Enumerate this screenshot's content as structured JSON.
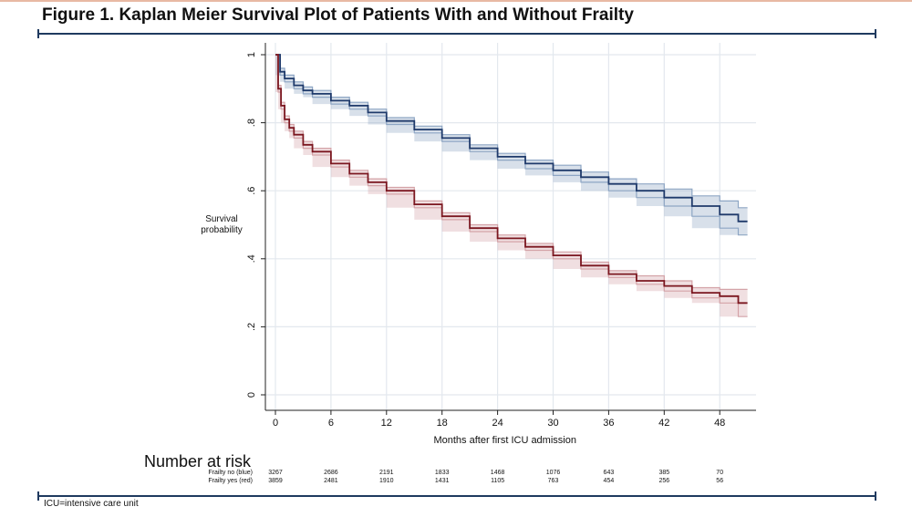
{
  "page": {
    "title": "Figure 1. Kaplan Meier Survival Plot of Patients With and Without Frailty",
    "footnote": "ICU=intensive care unit"
  },
  "risk_table": {
    "heading": "Number at risk",
    "rows": [
      {
        "label": "Frailty no (blue)",
        "values": [
          "3267",
          "2686",
          "2191",
          "1833",
          "1468",
          "1076",
          "643",
          "385",
          "70"
        ]
      },
      {
        "label": "Frailty yes (red)",
        "values": [
          "3859",
          "2481",
          "1910",
          "1431",
          "1105",
          "763",
          "454",
          "256",
          "56"
        ]
      }
    ]
  },
  "colors": {
    "no_frailty": "#1f3a6b",
    "frailty": "#7b1720",
    "no_frailty_band": "#8ea6c4",
    "frailty_band": "#d4a3a8",
    "grid": "#e3e8ee"
  },
  "chart_data": {
    "type": "line",
    "title": "",
    "xlabel": "Months after first ICU admission",
    "ylabel": "Survival probability",
    "xlim": [
      0,
      51
    ],
    "ylim": [
      0,
      1
    ],
    "xticks": [
      0,
      6,
      12,
      18,
      24,
      30,
      36,
      42,
      48
    ],
    "yticks": [
      0,
      0.2,
      0.4,
      0.6,
      0.8,
      1
    ],
    "ytick_labels": [
      "0",
      ".2",
      ".4",
      ".6",
      ".8",
      "1"
    ],
    "grid": true,
    "series": [
      {
        "name": "Frailty no (blue)",
        "color": "#1f3a6b",
        "x": [
          0,
          0.5,
          1,
          2,
          3,
          4,
          6,
          8,
          10,
          12,
          15,
          18,
          21,
          24,
          27,
          30,
          33,
          36,
          39,
          42,
          45,
          48,
          50,
          51
        ],
        "y": [
          1.0,
          0.95,
          0.93,
          0.91,
          0.895,
          0.885,
          0.865,
          0.85,
          0.83,
          0.805,
          0.78,
          0.755,
          0.725,
          0.7,
          0.68,
          0.66,
          0.64,
          0.62,
          0.6,
          0.58,
          0.555,
          0.53,
          0.51,
          0.51
        ],
        "ci_lower": [
          1.0,
          0.94,
          0.92,
          0.9,
          0.885,
          0.875,
          0.855,
          0.84,
          0.82,
          0.795,
          0.77,
          0.745,
          0.715,
          0.69,
          0.665,
          0.645,
          0.625,
          0.6,
          0.58,
          0.555,
          0.525,
          0.49,
          0.47,
          0.47
        ],
        "ci_upper": [
          1.0,
          0.96,
          0.94,
          0.92,
          0.905,
          0.895,
          0.875,
          0.86,
          0.84,
          0.815,
          0.79,
          0.765,
          0.735,
          0.71,
          0.69,
          0.675,
          0.655,
          0.635,
          0.62,
          0.605,
          0.585,
          0.57,
          0.55,
          0.55
        ]
      },
      {
        "name": "Frailty yes (red)",
        "color": "#7b1720",
        "x": [
          0,
          0.3,
          0.6,
          1,
          1.5,
          2,
          3,
          4,
          6,
          8,
          10,
          12,
          15,
          18,
          21,
          24,
          27,
          30,
          33,
          36,
          39,
          42,
          45,
          48,
          50,
          51
        ],
        "y": [
          1.0,
          0.9,
          0.85,
          0.81,
          0.785,
          0.765,
          0.735,
          0.715,
          0.68,
          0.65,
          0.625,
          0.6,
          0.56,
          0.525,
          0.49,
          0.46,
          0.435,
          0.41,
          0.38,
          0.355,
          0.335,
          0.32,
          0.3,
          0.29,
          0.27,
          0.27
        ],
        "ci_lower": [
          1.0,
          0.89,
          0.84,
          0.8,
          0.775,
          0.755,
          0.725,
          0.705,
          0.67,
          0.64,
          0.615,
          0.59,
          0.55,
          0.515,
          0.48,
          0.45,
          0.425,
          0.4,
          0.37,
          0.345,
          0.325,
          0.305,
          0.285,
          0.27,
          0.23,
          0.23
        ],
        "ci_upper": [
          1.0,
          0.91,
          0.86,
          0.82,
          0.795,
          0.775,
          0.745,
          0.725,
          0.69,
          0.66,
          0.635,
          0.61,
          0.57,
          0.535,
          0.5,
          0.47,
          0.445,
          0.42,
          0.39,
          0.365,
          0.35,
          0.335,
          0.315,
          0.31,
          0.31,
          0.31
        ]
      }
    ]
  }
}
